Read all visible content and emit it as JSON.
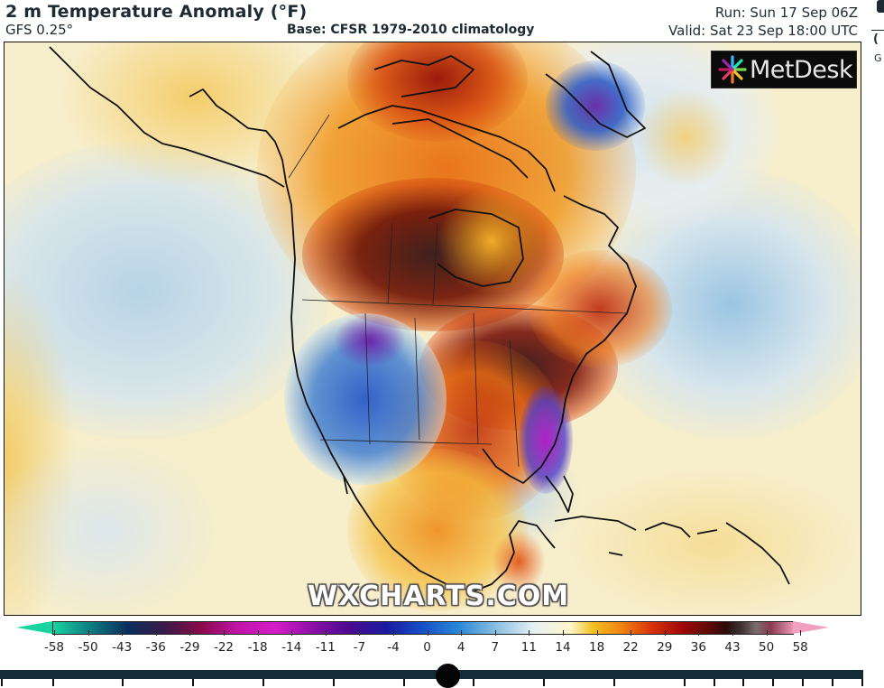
{
  "header": {
    "title": "2 m Temperature Anomaly (°F)",
    "model": "GFS 0.25°",
    "base": "Base: CFSR 1979-2010 climatology",
    "run": "Run: Sun 17 Sep 06Z",
    "valid": "Valid: Sat 23 Sep 18:00 UTC"
  },
  "edge_panel": {
    "paren": "(",
    "letter": "G"
  },
  "map": {
    "region": "North America",
    "logo": "MetDesk",
    "watermark": "WXCHARTS.COM",
    "icons": [
      "metdesk-logo-icon"
    ]
  },
  "colorbar": {
    "unit": "°F",
    "ticks": [
      "-58",
      "-50",
      "-43",
      "-36",
      "-29",
      "-22",
      "-18",
      "-14",
      "-11",
      "-7",
      "-4",
      "0",
      "4",
      "7",
      "11",
      "14",
      "18",
      "22",
      "29",
      "36",
      "43",
      "50",
      "58"
    ],
    "colors": {
      "min": "#19d4a0",
      "cold_mid": "#c014a8",
      "cold": "#1650c8",
      "neutral": "#fff6c8",
      "warm": "#f08010",
      "hot": "#a00808",
      "very_hot": "#2a0a0a",
      "max": "#e896b2"
    }
  },
  "timeline": {
    "knob_position_pct": 51,
    "tick_positions": [
      1,
      58,
      135,
      213,
      291,
      369,
      447,
      524,
      602,
      680,
      758,
      791,
      823,
      856,
      889,
      922,
      955
    ]
  }
}
